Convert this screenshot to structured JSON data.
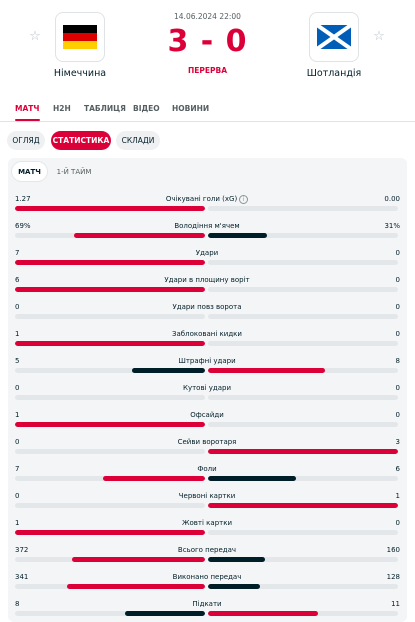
{
  "match": {
    "date": "14.06.2024 22:00",
    "score_home": "3",
    "score_sep": "-",
    "score_away": "0",
    "status": "ПЕРЕРВА",
    "home": {
      "name": "Німеччина",
      "flag_icon": "germany-flag-icon"
    },
    "away": {
      "name": "Шотландія",
      "flag_icon": "scotland-flag-icon"
    }
  },
  "main_tabs": [
    {
      "label": "МАТЧ",
      "active": true
    },
    {
      "label": "H2H",
      "active": false
    },
    {
      "label": "ТАБЛИЦЯ",
      "active": false
    },
    {
      "label": "ВІДЕО",
      "active": false
    },
    {
      "label": "НОВИНИ",
      "active": false
    }
  ],
  "sub_tabs": [
    {
      "label": "ОГЛЯД",
      "active": false
    },
    {
      "label": "СТАТИСТИКА",
      "active": true
    },
    {
      "label": "СКЛАДИ",
      "active": false
    }
  ],
  "period_tabs": [
    {
      "label": "МАТЧ",
      "active": true
    },
    {
      "label": "1-Й ТАЙМ",
      "active": false
    }
  ],
  "colors": {
    "accent": "#dc0039",
    "leading_bar": "#dc0039",
    "trailing_bar": "#001e28",
    "track": "#e4e7e9"
  },
  "stats": [
    {
      "label": "Очікувані голи (xG)",
      "home": "1.27",
      "away": "0.00",
      "home_share": 1.0,
      "away_share": 0.0,
      "info": true
    },
    {
      "label": "Володіння м'ячем",
      "home": "69%",
      "away": "31%",
      "home_share": 0.69,
      "away_share": 0.31
    },
    {
      "label": "Удари",
      "home": "7",
      "away": "0",
      "home_share": 1.0,
      "away_share": 0.0
    },
    {
      "label": "Удари в площину воріт",
      "home": "6",
      "away": "0",
      "home_share": 1.0,
      "away_share": 0.0
    },
    {
      "label": "Удари повз ворота",
      "home": "0",
      "away": "0",
      "home_share": 0.0,
      "away_share": 0.0
    },
    {
      "label": "Заблоковані кидки",
      "home": "1",
      "away": "0",
      "home_share": 1.0,
      "away_share": 0.0
    },
    {
      "label": "Штрафні удари",
      "home": "5",
      "away": "8",
      "home_share": 0.385,
      "away_share": 0.615
    },
    {
      "label": "Кутові удари",
      "home": "0",
      "away": "0",
      "home_share": 0.0,
      "away_share": 0.0
    },
    {
      "label": "Офсайди",
      "home": "1",
      "away": "0",
      "home_share": 1.0,
      "away_share": 0.0
    },
    {
      "label": "Сейви воротаря",
      "home": "0",
      "away": "3",
      "home_share": 0.0,
      "away_share": 1.0
    },
    {
      "label": "Фоли",
      "home": "7",
      "away": "6",
      "home_share": 0.538,
      "away_share": 0.462
    },
    {
      "label": "Червоні картки",
      "home": "0",
      "away": "1",
      "home_share": 0.0,
      "away_share": 1.0
    },
    {
      "label": "Жовті картки",
      "home": "1",
      "away": "0",
      "home_share": 1.0,
      "away_share": 0.0
    },
    {
      "label": "Всього передач",
      "home": "372",
      "away": "160",
      "home_share": 0.699,
      "away_share": 0.301
    },
    {
      "label": "Виконано передач",
      "home": "341",
      "away": "128",
      "home_share": 0.727,
      "away_share": 0.273
    },
    {
      "label": "Підкати",
      "home": "8",
      "away": "11",
      "home_share": 0.421,
      "away_share": 0.579
    }
  ]
}
